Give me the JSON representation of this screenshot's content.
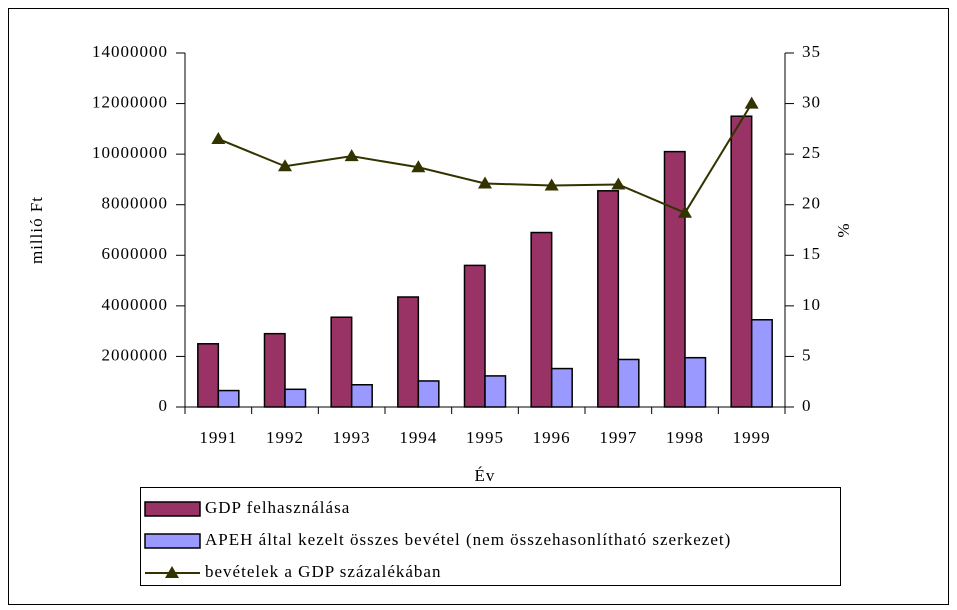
{
  "chart_data": {
    "type": "bar",
    "categories": [
      "1991",
      "1992",
      "1993",
      "1994",
      "1995",
      "1996",
      "1997",
      "1998",
      "1999"
    ],
    "series": [
      {
        "name": "GDP felhasználása",
        "type": "bar",
        "color": "#993366",
        "values": [
          2500000,
          2900000,
          3550000,
          4350000,
          5600000,
          6900000,
          8550000,
          10100000,
          11500000
        ]
      },
      {
        "name": "APEH által kezelt összes bevétel (nem összehasonlítható szerkezet)",
        "type": "bar",
        "color": "#9999ff",
        "values": [
          650000,
          700000,
          880000,
          1030000,
          1230000,
          1520000,
          1880000,
          1950000,
          3450000
        ]
      },
      {
        "name": "bevételek a GDP százalékában",
        "type": "line",
        "axis": "y2",
        "color": "#333300",
        "values": [
          26.5,
          23.8,
          24.8,
          23.7,
          22.1,
          21.9,
          22.0,
          19.2,
          30.0
        ]
      }
    ],
    "ylabel": "millió Ft",
    "y2label": "%",
    "xlabel": "Év",
    "ylim": [
      0,
      14000000
    ],
    "yticks": [
      0,
      2000000,
      4000000,
      6000000,
      8000000,
      10000000,
      12000000,
      14000000
    ],
    "y2lim": [
      0,
      35
    ],
    "y2ticks": [
      0,
      5,
      10,
      15,
      20,
      25,
      30,
      35
    ],
    "grid": false
  }
}
